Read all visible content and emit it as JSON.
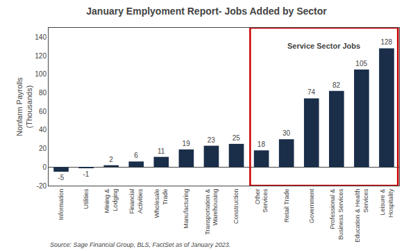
{
  "chart_data": {
    "type": "bar",
    "title": "January Emplyoment Report- Jobs Added by Sector",
    "ylabel": "Nonfarm Payrolls\n(Thousands)",
    "categories": [
      "Information",
      "Utilities",
      "Mining &\nLodging",
      "Financial\nActivities",
      "Wholesale\nTrade",
      "Manufacturing",
      "Transportation &\nWarehousing",
      "Construction",
      "Other\nServices",
      "Retail Trade",
      "Government",
      "Professional &\nBusiness Services",
      "Education & Health\nServices",
      "Leisure &\nHospitality"
    ],
    "values": [
      -5,
      -1,
      2,
      6,
      11,
      19,
      23,
      25,
      18,
      30,
      74,
      82,
      105,
      128
    ],
    "color": "#1a2e4a",
    "ylim": [
      -20,
      150
    ],
    "yticks": [
      -20,
      0,
      20,
      40,
      60,
      80,
      100,
      120,
      140
    ],
    "grid": false,
    "data_labels": true,
    "annotations": [
      {
        "text": "Service Sector Jobs",
        "categories": [
          "Other\nServices",
          "Leisure &\nHospitality"
        ],
        "color": "#cc0000"
      },
      {
        "text": "Source: Sage Financial Group, BLS, FactSet as of January 2023."
      }
    ]
  }
}
